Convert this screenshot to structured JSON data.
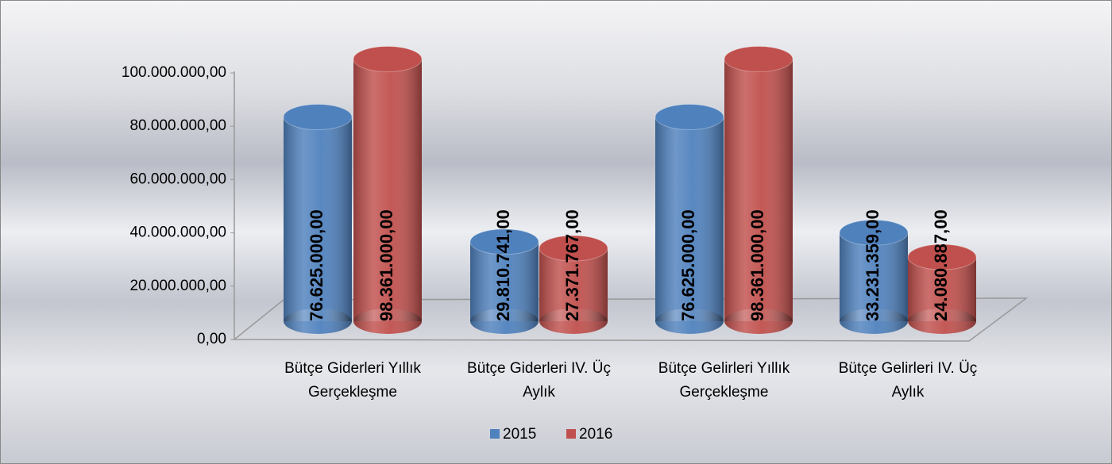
{
  "chart_data": {
    "type": "bar3d",
    "categories": [
      "Bütçe Giderleri Yıllık Gerçekleşme",
      "Bütçe Giderleri IV. Üç Aylık",
      "Bütçe Gelirleri Yıllık Gerçekleşme",
      "Bütçe Gelirleri IV. Üç Aylık"
    ],
    "series": [
      {
        "name": "2015",
        "color": "#4f81bd",
        "values": [
          76625000,
          29810741,
          76625000,
          33231359
        ],
        "value_labels": [
          "76.625.000,00",
          "29.810.741,00",
          "76.625.000,00",
          "33.231.359,00"
        ]
      },
      {
        "name": "2016",
        "color": "#c0504d",
        "values": [
          98361000,
          27371767,
          98361000,
          24080887
        ],
        "value_labels": [
          "98.361.000,00",
          "27.371.767,00",
          "98.361.000,00",
          "24.080.887,00"
        ]
      }
    ],
    "ylim": [
      0,
      100000000
    ],
    "yticks": [
      {
        "value": 0,
        "label": "0,00"
      },
      {
        "value": 20000000,
        "label": "20.000.000,00"
      },
      {
        "value": 40000000,
        "label": "40.000.000,00"
      },
      {
        "value": 60000000,
        "label": "60.000.000,00"
      },
      {
        "value": 80000000,
        "label": "80.000.000,00"
      },
      {
        "value": 100000000,
        "label": "100.000.000,00"
      }
    ],
    "legend": "bottom"
  }
}
